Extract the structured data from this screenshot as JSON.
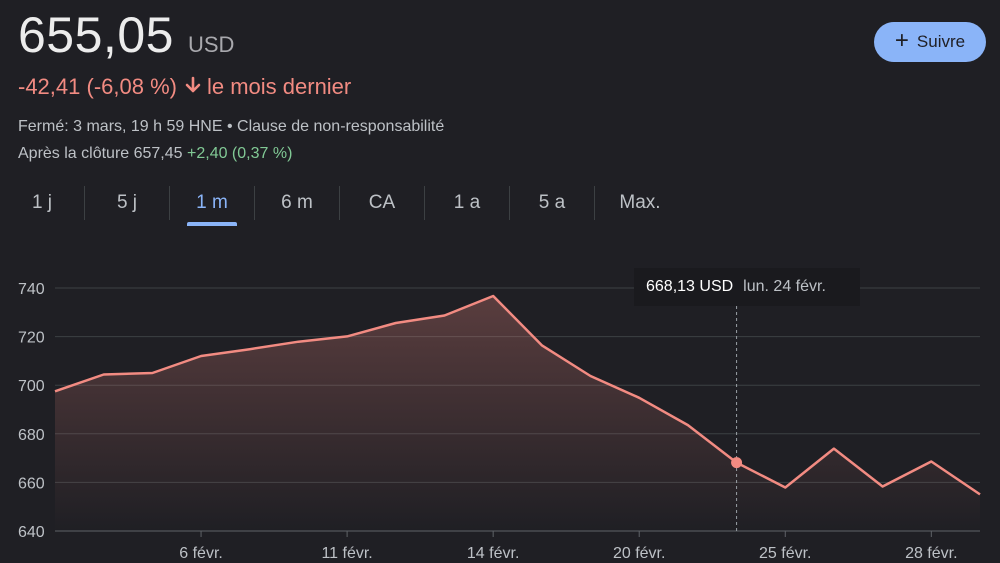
{
  "quote": {
    "price": "655,05",
    "currency": "USD",
    "change": "-42,41 (-6,08 %)",
    "period": "le mois dernier",
    "closed_info": "Fermé: 3 mars, 19 h 59 HNE • Clause de non-responsabilité",
    "after_hours_label": "Après la clôture 657,45",
    "after_hours_change": "+2,40 (0,37 %)"
  },
  "follow_label": "Suivre",
  "tabs": [
    "1 j",
    "5 j",
    "1 m",
    "6 m",
    "CA",
    "1 a",
    "5 a",
    "Max."
  ],
  "active_tab": "1 m",
  "tooltip": {
    "value": "668,13 USD",
    "date": "lun. 24 févr."
  },
  "colors": {
    "line": "#f28b82",
    "accent": "#8ab4f8",
    "positive": "#81c995"
  },
  "chart_data": {
    "type": "area",
    "x": [
      "3 févr.",
      "4 févr.",
      "5 févr.",
      "6 févr.",
      "7 févr.",
      "10 févr.",
      "11 févr.",
      "12 févr.",
      "13 févr.",
      "14 févr.",
      "18 févr.",
      "19 févr.",
      "20 févr.",
      "21 févr.",
      "24 févr.",
      "25 févr.",
      "26 févr.",
      "27 févr.",
      "28 févr.",
      "3 mars"
    ],
    "values": [
      697.5,
      704.4,
      705.0,
      712.0,
      714.8,
      717.9,
      720.1,
      725.6,
      728.7,
      736.7,
      716.4,
      703.8,
      694.8,
      683.6,
      668.13,
      657.9,
      673.9,
      658.3,
      668.6,
      655.05
    ],
    "x_ticks": [
      "6 févr.",
      "11 févr.",
      "14 févr.",
      "20 févr.",
      "25 févr.",
      "28 févr."
    ],
    "y_ticks": [
      740,
      720,
      700,
      680,
      660,
      640
    ],
    "ylim": [
      640,
      745
    ],
    "grid": true,
    "highlight_index": 14
  }
}
